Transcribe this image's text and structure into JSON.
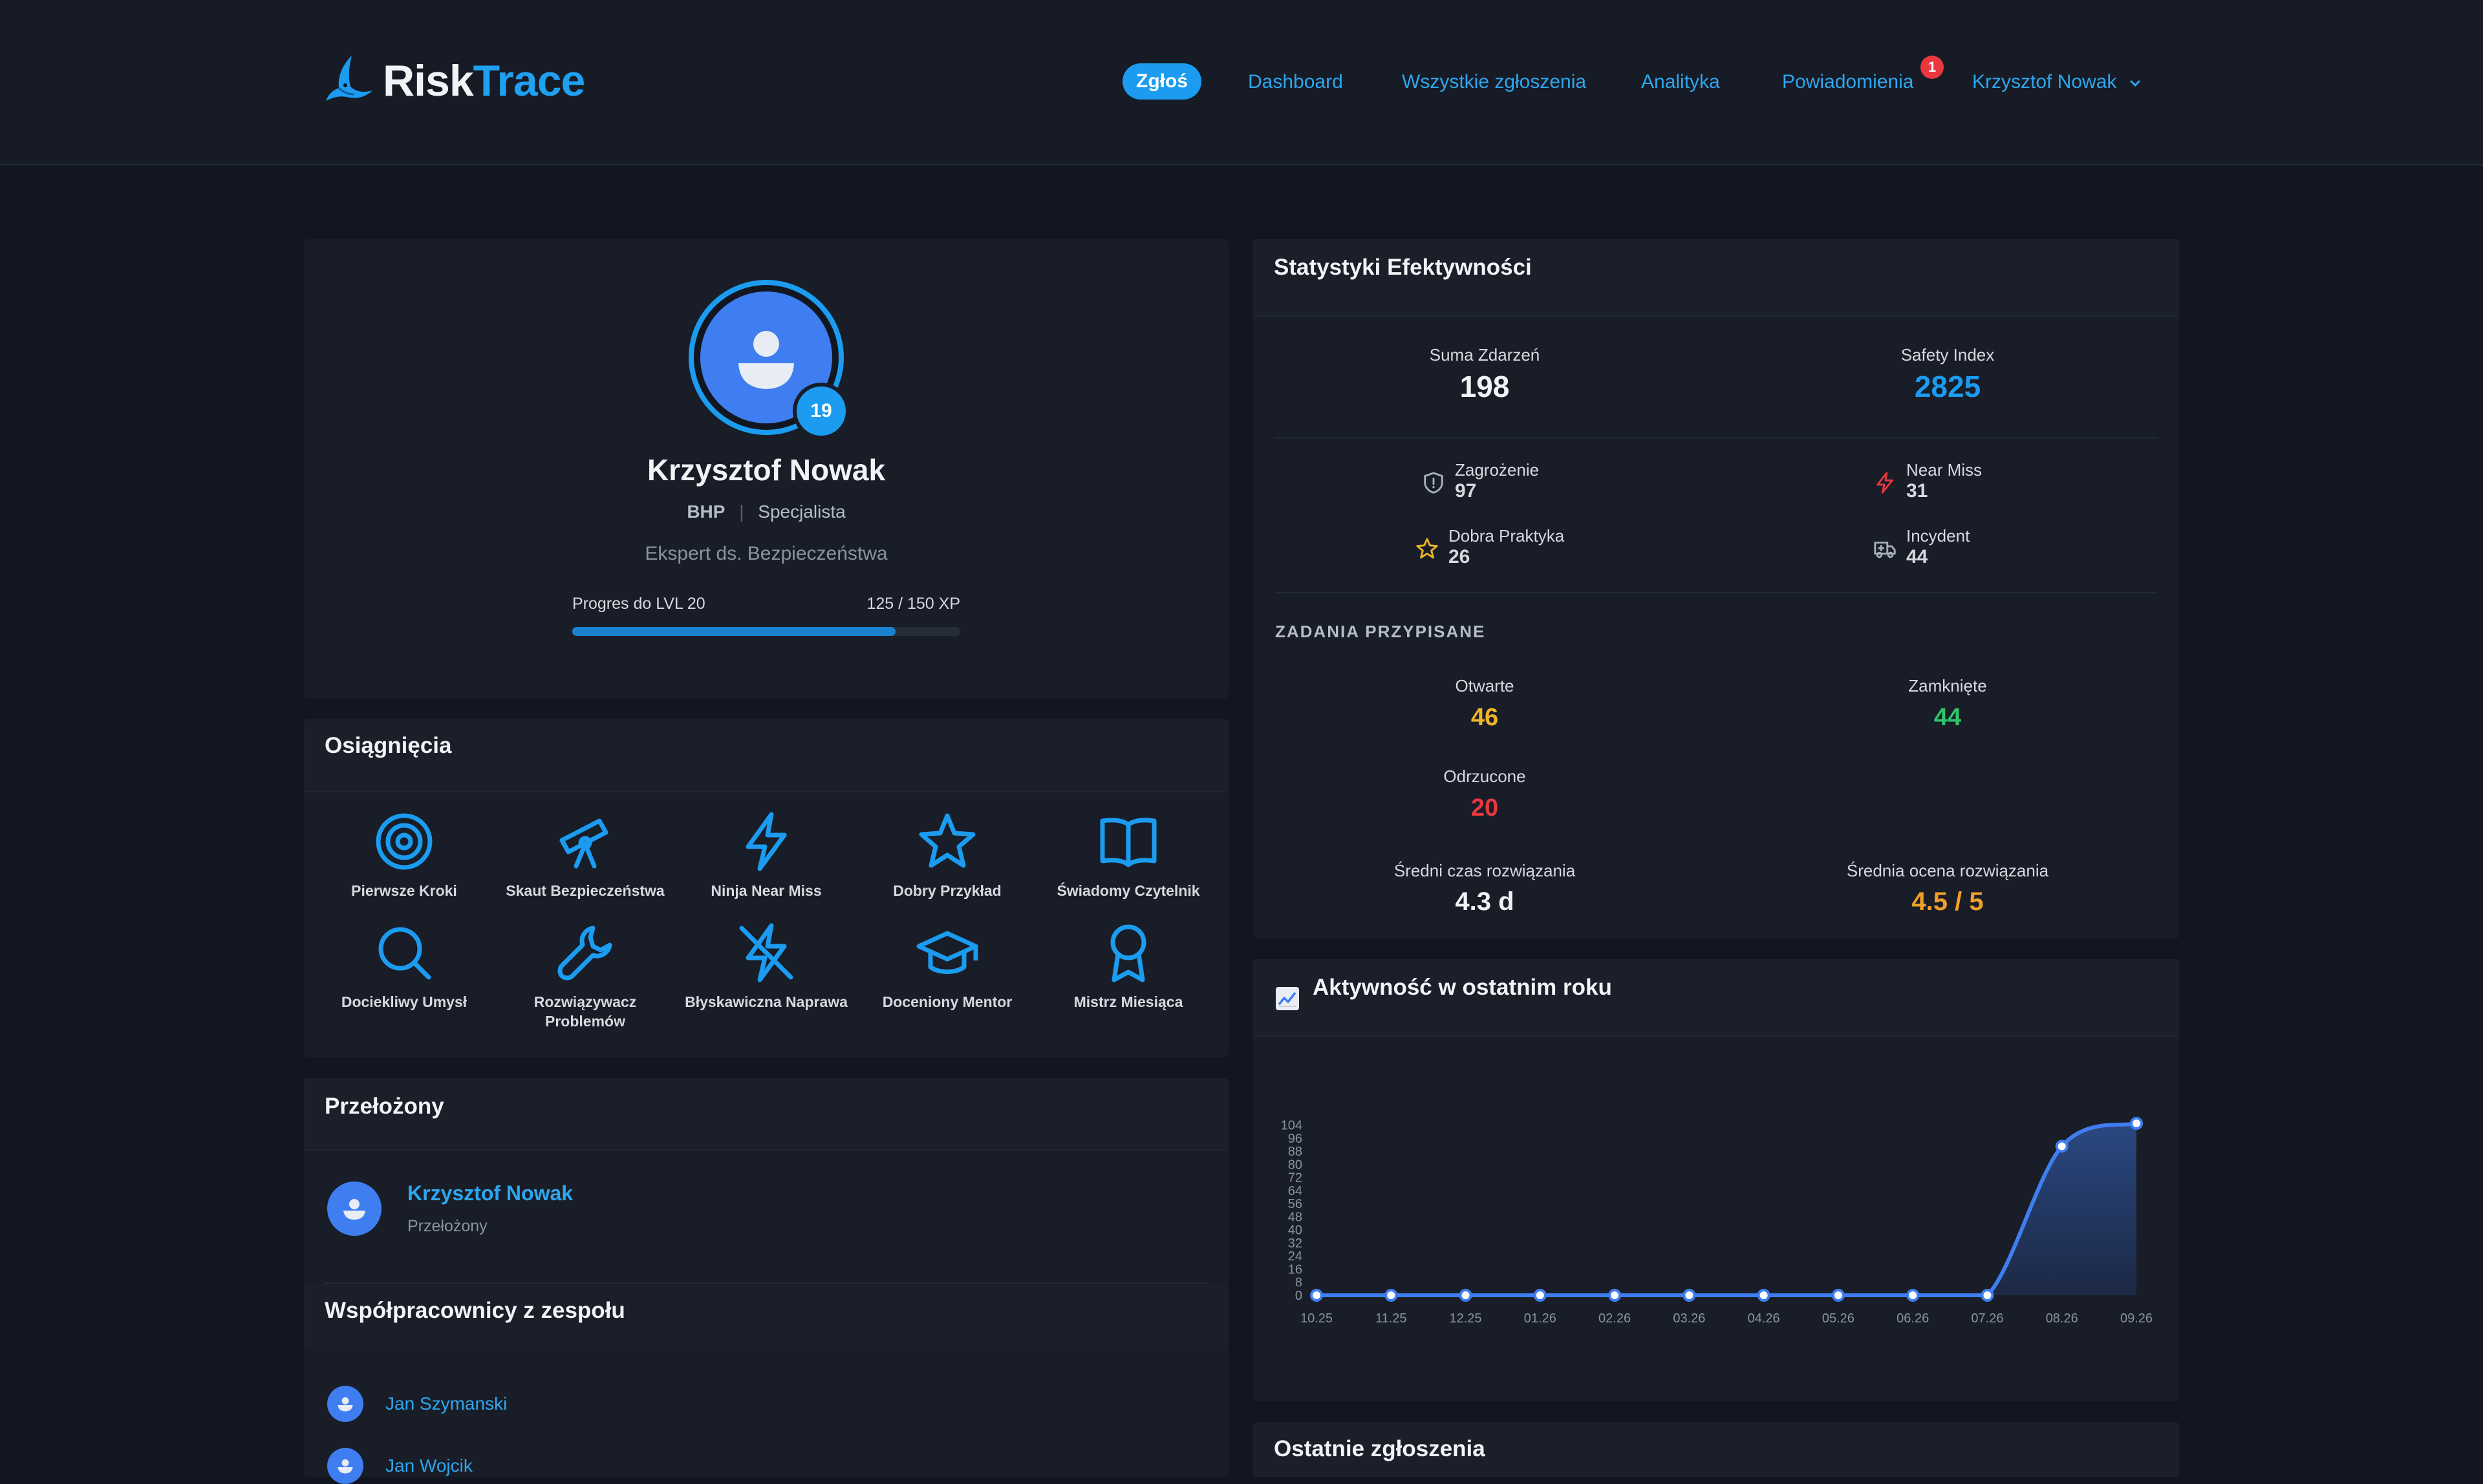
{
  "app": {
    "logo_part1": "Risk",
    "logo_part2": "Trace",
    "colors": {
      "accent": "#1b9cf0",
      "background": "#121620",
      "card": "#181d27",
      "danger": "#e9383f",
      "success": "#2fc46b",
      "warning": "#f0b52a"
    }
  },
  "nav": {
    "report_button": "Zgłoś",
    "dashboard": "Dashboard",
    "all_reports": "Wszystkie zgłoszenia",
    "analytics": "Analityka",
    "notifications": "Powiadomienia",
    "notifications_count": "1",
    "user": "Krzysztof Nowak"
  },
  "profile": {
    "name": "Krzysztof Nowak",
    "department": "BHP",
    "separator": "|",
    "role": "Specjalista",
    "title": "Ekspert ds. Bezpieczeństwa",
    "level": "19",
    "progress_label": "Progres do LVL 20",
    "progress_text": "125 / 150 XP",
    "progress_fraction": 0.833
  },
  "achievements": {
    "title": "Osiągnięcia",
    "items": [
      {
        "label": "Pierwsze Kroki",
        "icon": "target-icon"
      },
      {
        "label": "Skaut Bezpieczeństwa",
        "icon": "telescope-icon"
      },
      {
        "label": "Ninja Near Miss",
        "icon": "lightning-icon"
      },
      {
        "label": "Dobry Przykład",
        "icon": "star-icon"
      },
      {
        "label": "Świadomy Czytelnik",
        "icon": "book-icon"
      },
      {
        "label": "Dociekliwy Umysł",
        "icon": "search-icon"
      },
      {
        "label": "Rozwiązywacz Problemów",
        "icon": "wrench-icon"
      },
      {
        "label": "Błyskawiczna Naprawa",
        "icon": "lightning-off-icon"
      },
      {
        "label": "Doceniony Mentor",
        "icon": "graduation-cap-icon"
      },
      {
        "label": "Mistrz Miesiąca",
        "icon": "award-icon"
      }
    ]
  },
  "supervisor": {
    "title": "Przełożony",
    "name": "Krzysztof Nowak",
    "role": "Przełożony"
  },
  "team": {
    "title": "Współpracownicy z zespołu",
    "members": [
      "Jan Szymanski",
      "Jan Wojcik"
    ]
  },
  "stats": {
    "title": "Statystyki Efektywności",
    "total_label": "Suma Zdarzeń",
    "total_value": "198",
    "safety_label": "Safety Index",
    "safety_value": "2825",
    "categories": [
      {
        "name": "Zagrożenie",
        "value": "97",
        "icon": "shield-icon"
      },
      {
        "name": "Near Miss",
        "value": "31",
        "icon": "lightning-icon"
      },
      {
        "name": "Dobra Praktyka",
        "value": "26",
        "icon": "star-icon"
      },
      {
        "name": "Incydent",
        "value": "44",
        "icon": "ambulance-icon"
      }
    ],
    "tasks_title": "ZADANIA PRZYPISANE",
    "open_label": "Otwarte",
    "open_value": "46",
    "closed_label": "Zamknięte",
    "closed_value": "44",
    "rejected_label": "Odrzucone",
    "rejected_value": "20",
    "avg_time_label": "Średni czas rozwiązania",
    "avg_time_value": "4.3 d",
    "avg_rating_label": "Średnia ocena rozwiązania",
    "avg_rating_value": "4.5 / 5"
  },
  "activity": {
    "title": "Aktywność w ostatnim roku"
  },
  "recent": {
    "title": "Ostatnie zgłoszenia"
  },
  "chart_data": {
    "type": "area",
    "title": "Aktywność w ostatnim roku",
    "xlabel": "",
    "ylabel": "",
    "x": [
      "10.25",
      "11.25",
      "12.25",
      "01.26",
      "02.26",
      "03.26",
      "04.26",
      "05.26",
      "06.26",
      "07.26",
      "08.26",
      "09.26"
    ],
    "values": [
      0,
      0,
      0,
      0,
      0,
      0,
      0,
      0,
      0,
      0,
      91,
      105
    ],
    "yticks": [
      0,
      8,
      16,
      24,
      32,
      40,
      48,
      56,
      64,
      72,
      80,
      88,
      96,
      104
    ],
    "ylim": [
      0,
      105
    ],
    "grid": false,
    "legend": "none",
    "line_color": "#3f7ef0"
  }
}
